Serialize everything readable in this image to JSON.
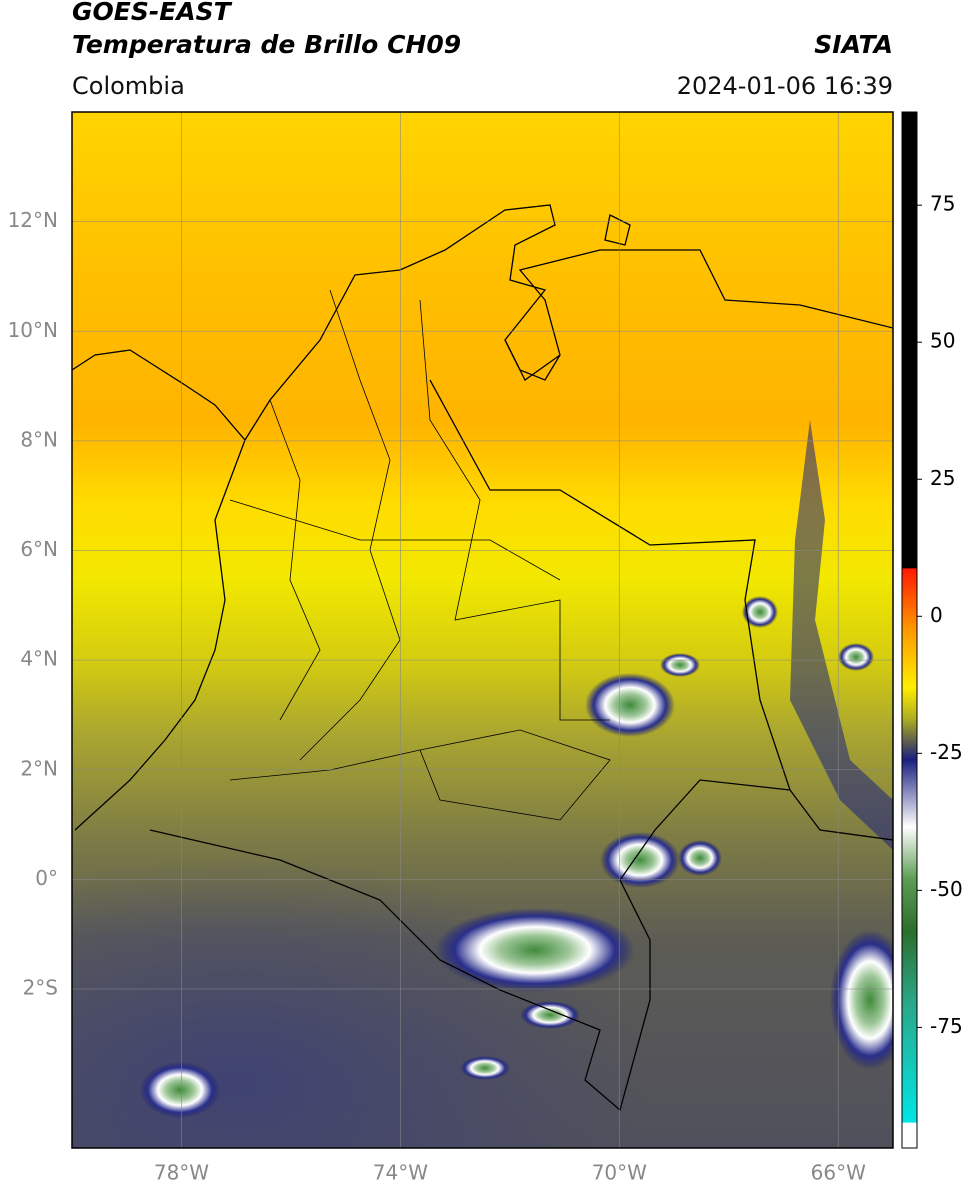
{
  "header": {
    "title": "GOES-EAST",
    "subtitle": "Temperatura de Brillo CH09",
    "source": "SIATA",
    "region": "Colombia",
    "datetime": "2024-01-06 16:39"
  },
  "map": {
    "latlim": [
      -4.9,
      14
    ],
    "lonlim": [
      -80,
      -65
    ],
    "lat_ticks": [
      {
        "value": 12,
        "label": "12°N"
      },
      {
        "value": 10,
        "label": "10°N"
      },
      {
        "value": 8,
        "label": "8°N"
      },
      {
        "value": 6,
        "label": "6°N"
      },
      {
        "value": 4,
        "label": "4°N"
      },
      {
        "value": 2,
        "label": "2°N"
      },
      {
        "value": 0,
        "label": "0°"
      },
      {
        "value": -2,
        "label": "2°S"
      }
    ],
    "lon_ticks": [
      {
        "value": -78,
        "label": "78°W"
      },
      {
        "value": -74,
        "label": "74°W"
      },
      {
        "value": -70,
        "label": "70°W"
      },
      {
        "value": -66,
        "label": "66°W"
      }
    ]
  },
  "colorbar": {
    "clim": [
      -97,
      92
    ],
    "ticks": [
      75,
      50,
      25,
      0,
      -25,
      -50,
      -75
    ]
  }
}
